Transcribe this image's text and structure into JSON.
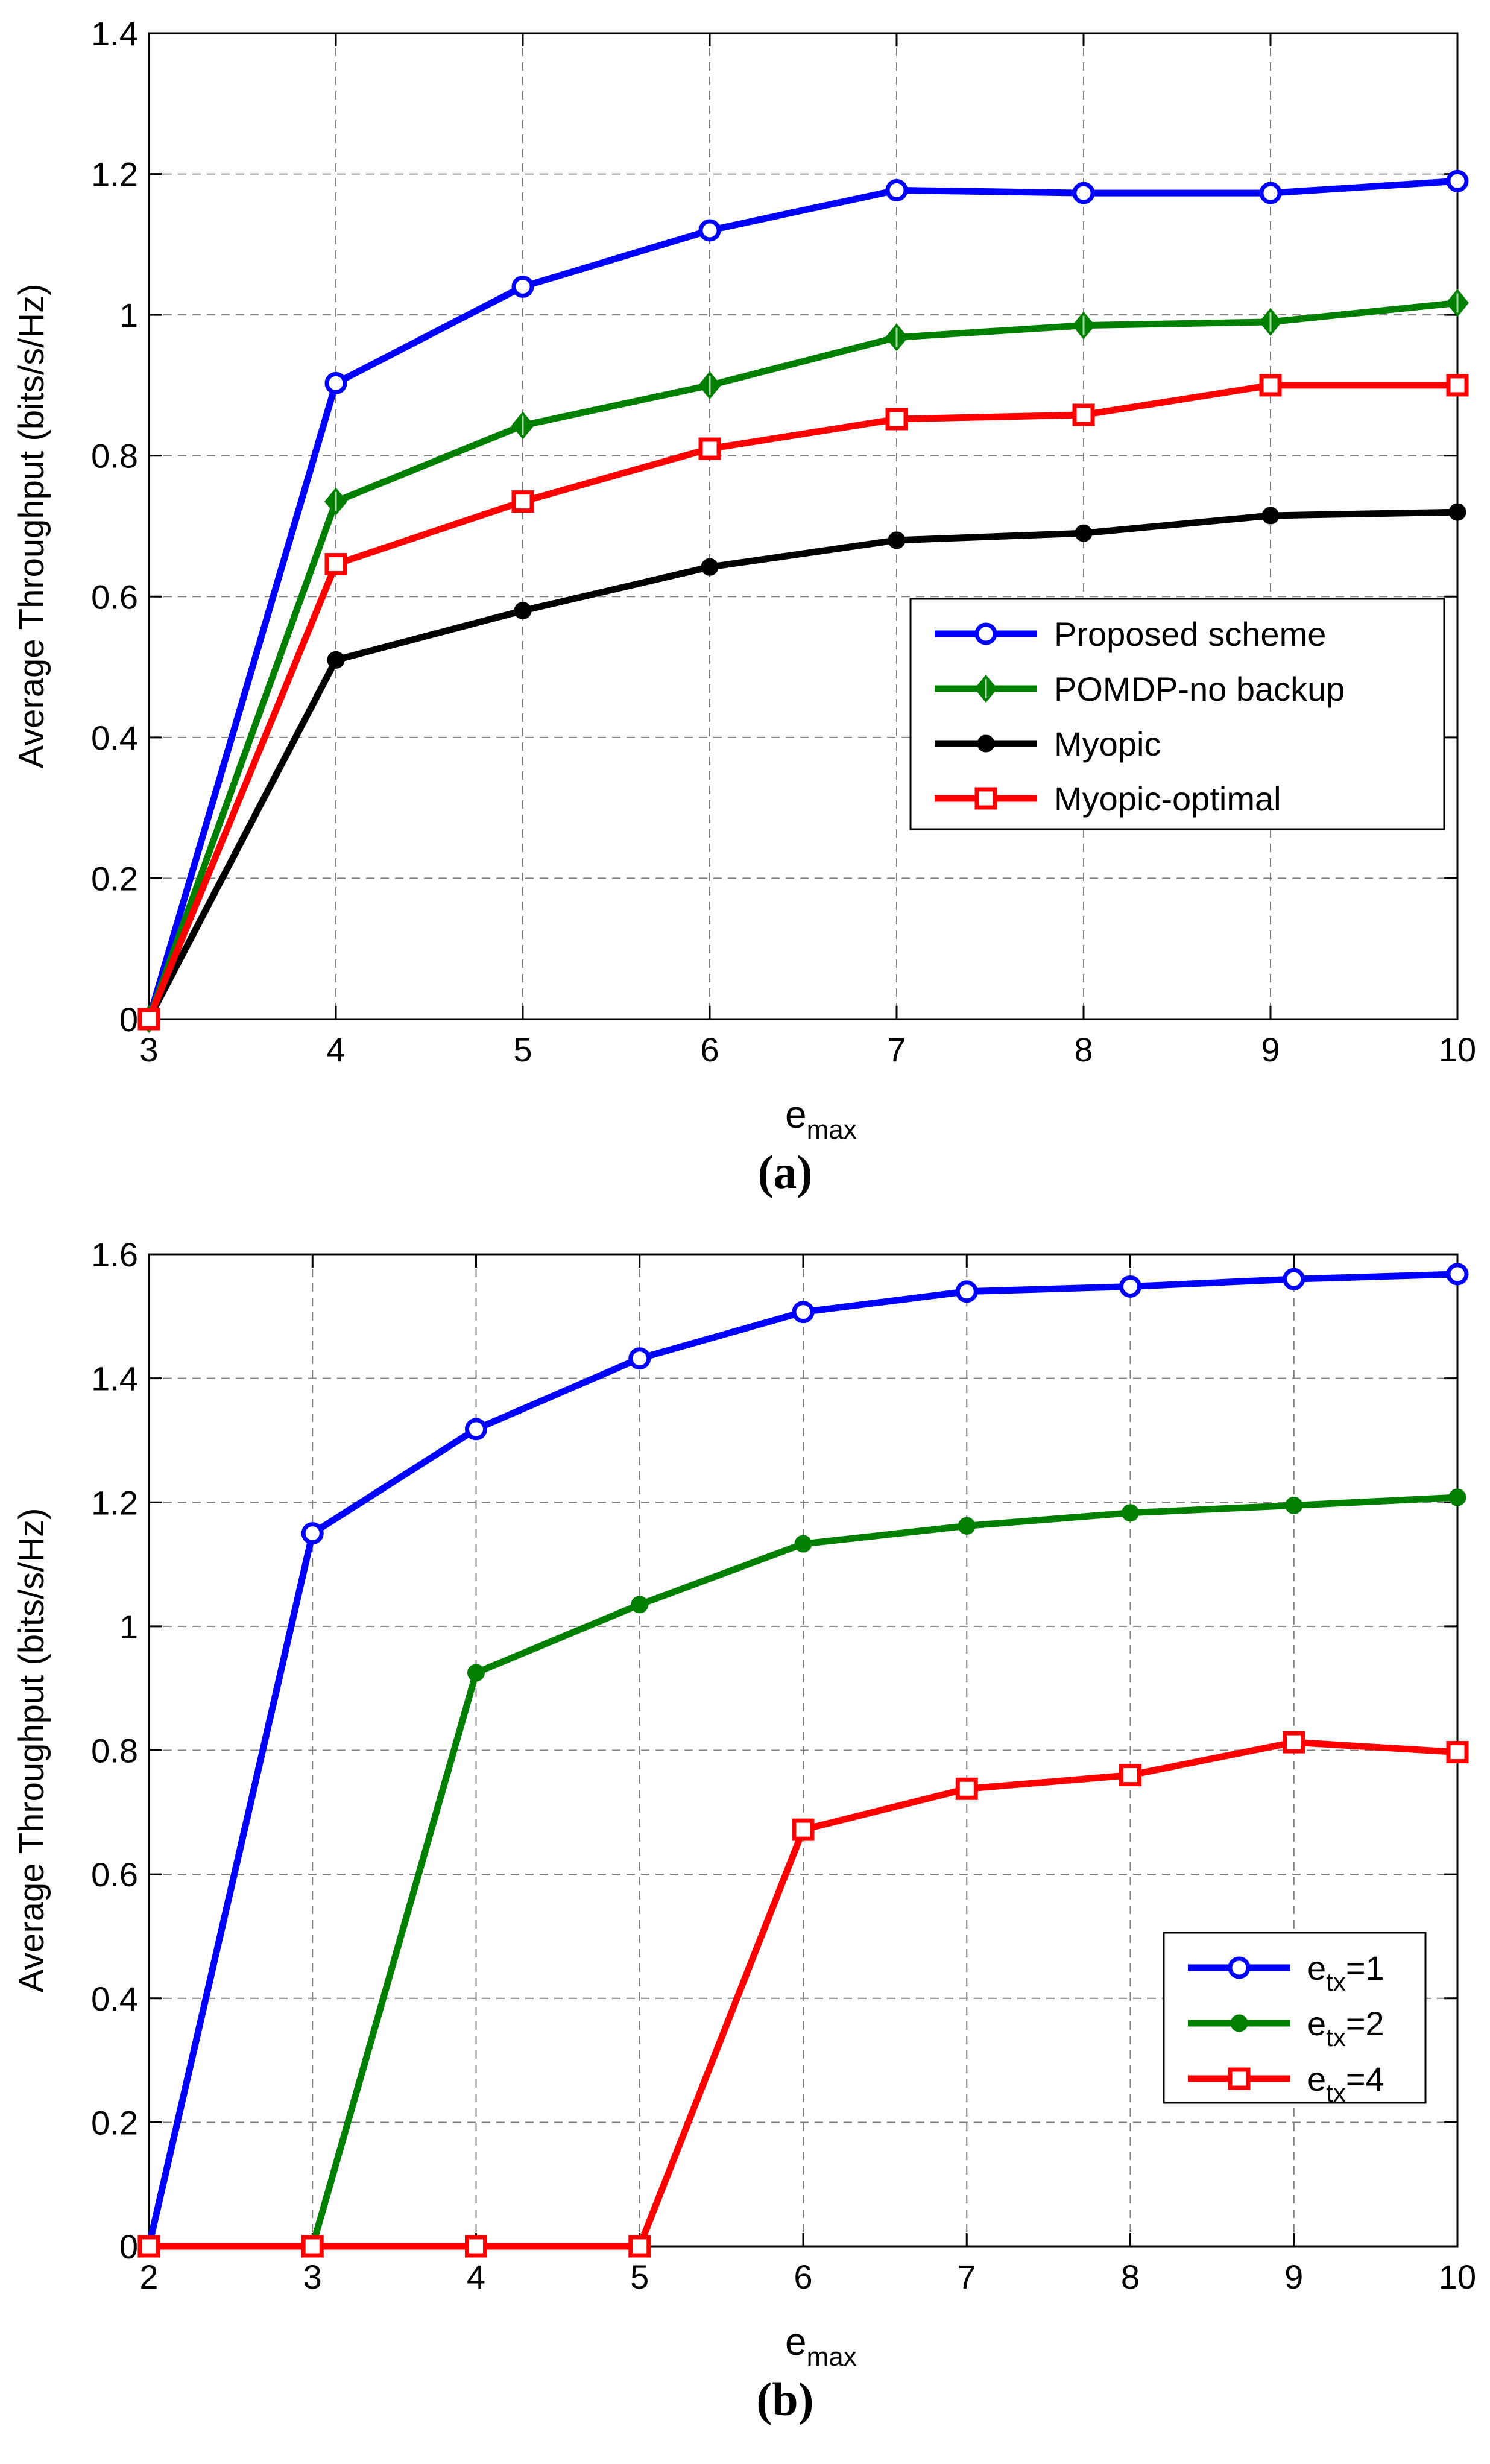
{
  "chart_data": [
    {
      "type": "line",
      "caption": "(a)",
      "title": "",
      "xlabel": "e_max",
      "xlabel_main": "e",
      "xlabel_sub": "max",
      "ylabel": "Average Throughput (bits/s/Hz)",
      "xlim": [
        3,
        10
      ],
      "ylim": [
        0,
        1.4
      ],
      "grid": true,
      "legend_position": "right-middle",
      "x_ticks": [
        3,
        4,
        5,
        6,
        7,
        8,
        9,
        10
      ],
      "x_tick_labels": [
        "3",
        "4",
        "5",
        "6",
        "7",
        "8",
        "9",
        "10"
      ],
      "y_ticks": [
        0,
        0.2,
        0.4,
        0.6,
        0.8,
        1.0,
        1.2,
        1.4
      ],
      "y_tick_labels": [
        "0",
        "0.2",
        "0.4",
        "0.6",
        "0.8",
        "1",
        "1.2",
        "1.4"
      ],
      "x": [
        3,
        4,
        5,
        6,
        7,
        8,
        9,
        10
      ],
      "series": [
        {
          "name": "Proposed scheme",
          "label_main": "Proposed scheme",
          "label_sub": "",
          "label_tail": "",
          "color": "#0000ff",
          "marker": "circle",
          "values": [
            0,
            0.903,
            1.04,
            1.12,
            1.177,
            1.173,
            1.173,
            1.19
          ]
        },
        {
          "name": "POMDP-no backup",
          "label_main": "POMDP-no backup",
          "label_sub": "",
          "label_tail": "",
          "color": "#007f00",
          "marker": "diamond",
          "values": [
            0,
            0.735,
            0.843,
            0.9,
            0.968,
            0.985,
            0.99,
            1.017
          ]
        },
        {
          "name": "Myopic",
          "label_main": "Myopic",
          "label_sub": "",
          "label_tail": "",
          "color": "#000000",
          "marker": "dot",
          "values": [
            0,
            0.51,
            0.58,
            0.642,
            0.68,
            0.69,
            0.715,
            0.72
          ]
        },
        {
          "name": "Myopic-optimal",
          "label_main": "Myopic-optimal",
          "label_sub": "",
          "label_tail": "",
          "color": "#ff0000",
          "marker": "square",
          "values": [
            0,
            0.646,
            0.735,
            0.81,
            0.852,
            0.858,
            0.9,
            0.9
          ]
        }
      ]
    },
    {
      "type": "line",
      "caption": "(b)",
      "title": "",
      "xlabel": "e_max",
      "xlabel_main": "e",
      "xlabel_sub": "max",
      "ylabel": "Average Throughput (bits/s/Hz)",
      "xlim": [
        2,
        10
      ],
      "ylim": [
        0,
        1.6
      ],
      "grid": true,
      "legend_position": "right-lower",
      "x_ticks": [
        2,
        3,
        4,
        5,
        6,
        7,
        8,
        9,
        10
      ],
      "x_tick_labels": [
        "2",
        "3",
        "4",
        "5",
        "6",
        "7",
        "8",
        "9",
        "10"
      ],
      "y_ticks": [
        0,
        0.2,
        0.4,
        0.6,
        0.8,
        1.0,
        1.2,
        1.4,
        1.6
      ],
      "y_tick_labels": [
        "0",
        "0.2",
        "0.4",
        "0.6",
        "0.8",
        "1",
        "1.2",
        "1.4",
        "1.6"
      ],
      "x": [
        2,
        3,
        4,
        5,
        6,
        7,
        8,
        9,
        10
      ],
      "series": [
        {
          "name": "e_tx=1",
          "label_main": "e",
          "label_sub": "tx",
          "label_tail": "=1",
          "color": "#0000ff",
          "marker": "circle",
          "values": [
            0,
            1.15,
            1.318,
            1.432,
            1.507,
            1.54,
            1.548,
            1.56,
            1.568
          ]
        },
        {
          "name": "e_tx=2",
          "label_main": "e",
          "label_sub": "tx",
          "label_tail": "=2",
          "color": "#007f00",
          "marker": "dot",
          "values": [
            0,
            0,
            0.925,
            1.035,
            1.133,
            1.162,
            1.183,
            1.195,
            1.208
          ]
        },
        {
          "name": "e_tx=4",
          "label_main": "e",
          "label_sub": "tx",
          "label_tail": "=4",
          "color": "#ff0000",
          "marker": "square",
          "values": [
            0,
            0,
            0,
            0,
            0.672,
            0.738,
            0.76,
            0.813,
            0.797
          ]
        }
      ]
    }
  ]
}
